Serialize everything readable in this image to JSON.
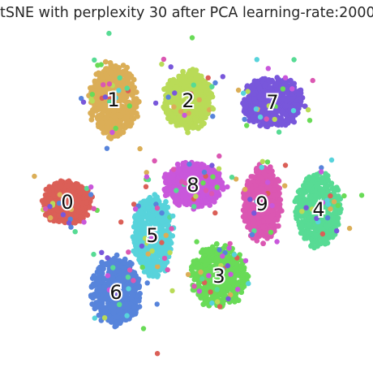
{
  "chart_data": {
    "type": "scatter",
    "title": "tSNE with perplexity 30 after PCA learning-rate:2000",
    "xlabel": "",
    "ylabel": "",
    "axes_visible": false,
    "grid": false,
    "legend": "none",
    "series": [
      {
        "name": "0",
        "label": "0",
        "color": "#db5f57",
        "center": [
          83,
          249
        ],
        "spread": [
          30,
          26
        ]
      },
      {
        "name": "1",
        "label": "1",
        "color": "#dbae57",
        "center": [
          140,
          123
        ],
        "spread": [
          30,
          45
        ]
      },
      {
        "name": "2",
        "label": "2",
        "color": "#b9db57",
        "center": [
          232,
          124
        ],
        "spread": [
          30,
          36
        ]
      },
      {
        "name": "3",
        "label": "3",
        "color": "#69db57",
        "center": [
          270,
          340
        ],
        "spread": [
          34,
          38
        ]
      },
      {
        "name": "4",
        "label": "4",
        "color": "#57db94",
        "center": [
          393,
          258
        ],
        "spread": [
          28,
          44
        ]
      },
      {
        "name": "5",
        "label": "5",
        "color": "#57d3db",
        "center": [
          188,
          290
        ],
        "spread": [
          24,
          50
        ]
      },
      {
        "name": "6",
        "label": "6",
        "color": "#5784db",
        "center": [
          143,
          360
        ],
        "spread": [
          30,
          42
        ]
      },
      {
        "name": "7",
        "label": "7",
        "color": "#7857db",
        "center": [
          336,
          126
        ],
        "spread": [
          38,
          30
        ]
      },
      {
        "name": "8",
        "label": "8",
        "color": "#c957db",
        "center": [
          238,
          228
        ],
        "spread": [
          36,
          28
        ]
      },
      {
        "name": "9",
        "label": "9",
        "color": "#db57b2",
        "center": [
          323,
          251
        ],
        "spread": [
          24,
          46
        ]
      }
    ]
  }
}
